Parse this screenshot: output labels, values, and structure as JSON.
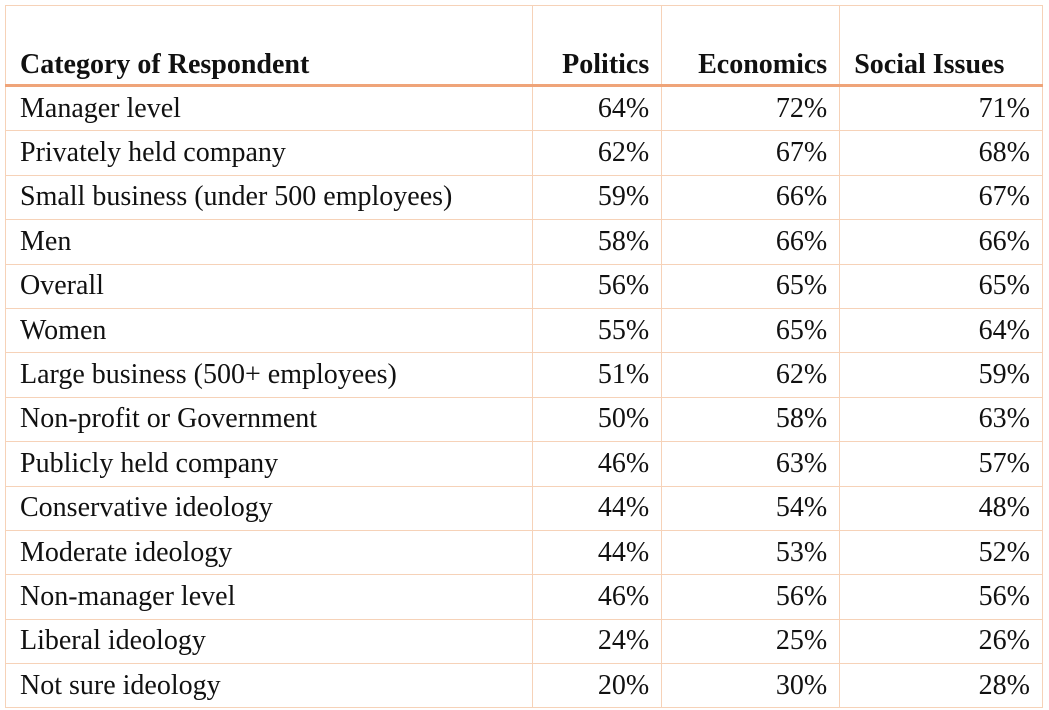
{
  "table": {
    "header": [
      "Category of Respondent",
      "Politics",
      "Economics",
      "Social Issues"
    ],
    "rows": [
      [
        "Manager level",
        "64%",
        "72%",
        "71%"
      ],
      [
        "Privately held company",
        "62%",
        "67%",
        "68%"
      ],
      [
        "Small business (under 500 employees)",
        "59%",
        "66%",
        "67%"
      ],
      [
        "Men",
        "58%",
        "66%",
        "66%"
      ],
      [
        "Overall",
        "56%",
        "65%",
        "65%"
      ],
      [
        "Women",
        "55%",
        "65%",
        "64%"
      ],
      [
        "Large business (500+ employees)",
        "51%",
        "62%",
        "59%"
      ],
      [
        "Non-profit or Government",
        "50%",
        "58%",
        "63%"
      ],
      [
        "Publicly held company",
        "46%",
        "63%",
        "57%"
      ],
      [
        "Conservative ideology",
        "44%",
        "54%",
        "48%"
      ],
      [
        "Moderate ideology",
        "44%",
        "53%",
        "52%"
      ],
      [
        "Non-manager level",
        "46%",
        "56%",
        "56%"
      ],
      [
        "Liberal ideology",
        "24%",
        "25%",
        "26%"
      ],
      [
        "Not sure ideology",
        "20%",
        "30%",
        "28%"
      ]
    ]
  }
}
